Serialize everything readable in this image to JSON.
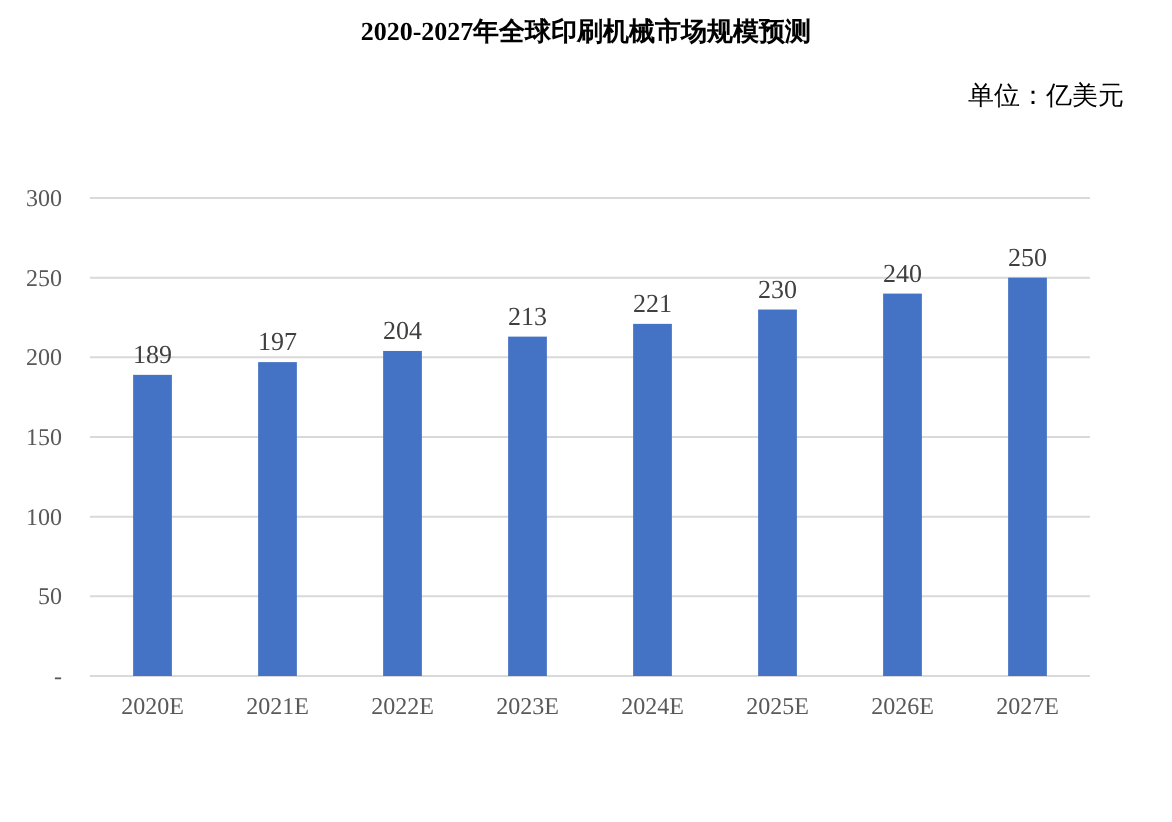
{
  "chart_data": {
    "type": "bar",
    "title": "2020-2027年全球印刷机械市场规模预测",
    "annotations": [
      "单位：亿美元"
    ],
    "categories": [
      "2020E",
      "2021E",
      "2022E",
      "2023E",
      "2024E",
      "2025E",
      "2026E",
      "2027E"
    ],
    "values": [
      189,
      197,
      204,
      213,
      221,
      230,
      240,
      250
    ],
    "color": "#4472c4",
    "ylim": [
      0,
      300
    ],
    "yticks": [
      {
        "value": 0,
        "label": "-"
      },
      50,
      100,
      150,
      200,
      250,
      300
    ],
    "grid": "y",
    "data_labels": true
  }
}
